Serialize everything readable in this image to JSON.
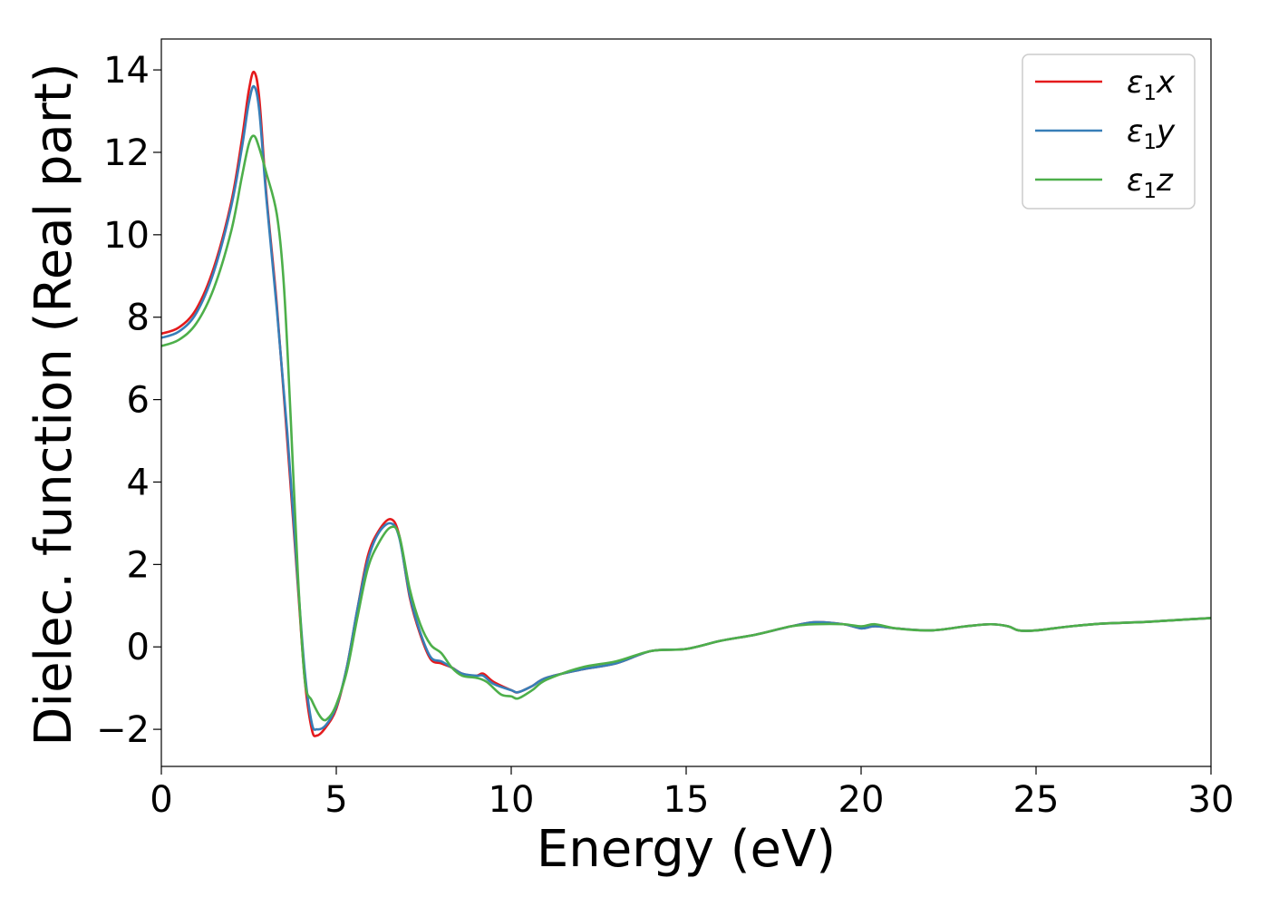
{
  "chart_data": {
    "type": "line",
    "title": "",
    "xlabel": "Energy (eV)",
    "ylabel": "Dielec. function (Real part)",
    "xlim": [
      0,
      30
    ],
    "ylim": [
      -2.9,
      14.75
    ],
    "xticks": [
      0,
      5,
      10,
      15,
      20,
      25,
      30
    ],
    "yticks": [
      -2,
      0,
      2,
      4,
      6,
      8,
      10,
      12,
      14
    ],
    "xtick_labels": [
      "0",
      "5",
      "10",
      "15",
      "20",
      "25",
      "30"
    ],
    "ytick_labels": [
      "−2",
      "0",
      "2",
      "4",
      "6",
      "8",
      "10",
      "12",
      "14"
    ],
    "grid": false,
    "legend_position": "top-right",
    "series": [
      {
        "name": "ε1x",
        "legend_base": "ε",
        "legend_sub": "1",
        "legend_suffix": "x",
        "color": "#e41a1c",
        "points": [
          [
            0,
            7.6
          ],
          [
            0.5,
            7.75
          ],
          [
            1.0,
            8.2
          ],
          [
            1.5,
            9.2
          ],
          [
            2.0,
            10.8
          ],
          [
            2.3,
            12.3
          ],
          [
            2.5,
            13.5
          ],
          [
            2.65,
            13.95
          ],
          [
            2.8,
            13.3
          ],
          [
            3.0,
            11.0
          ],
          [
            3.3,
            8.3
          ],
          [
            3.6,
            5.0
          ],
          [
            3.9,
            1.5
          ],
          [
            4.1,
            -0.8
          ],
          [
            4.3,
            -2.0
          ],
          [
            4.45,
            -2.15
          ],
          [
            4.7,
            -1.95
          ],
          [
            5.0,
            -1.5
          ],
          [
            5.3,
            -0.5
          ],
          [
            5.6,
            0.9
          ],
          [
            5.9,
            2.2
          ],
          [
            6.2,
            2.8
          ],
          [
            6.55,
            3.1
          ],
          [
            6.8,
            2.7
          ],
          [
            7.1,
            1.2
          ],
          [
            7.4,
            0.3
          ],
          [
            7.7,
            -0.3
          ],
          [
            8.0,
            -0.4
          ],
          [
            8.3,
            -0.5
          ],
          [
            8.6,
            -0.65
          ],
          [
            9.0,
            -0.7
          ],
          [
            9.2,
            -0.65
          ],
          [
            9.5,
            -0.85
          ],
          [
            10.0,
            -1.05
          ],
          [
            10.2,
            -1.1
          ],
          [
            10.6,
            -0.95
          ],
          [
            11.0,
            -0.75
          ],
          [
            12.0,
            -0.55
          ],
          [
            13.0,
            -0.4
          ],
          [
            14.0,
            -0.1
          ],
          [
            15.0,
            -0.05
          ],
          [
            16.0,
            0.15
          ],
          [
            17.0,
            0.3
          ],
          [
            18.0,
            0.5
          ],
          [
            18.7,
            0.6
          ],
          [
            19.5,
            0.55
          ],
          [
            20.0,
            0.45
          ],
          [
            20.4,
            0.5
          ],
          [
            21.0,
            0.45
          ],
          [
            22.0,
            0.4
          ],
          [
            23.0,
            0.5
          ],
          [
            23.7,
            0.55
          ],
          [
            24.2,
            0.5
          ],
          [
            24.5,
            0.4
          ],
          [
            25.0,
            0.4
          ],
          [
            26.0,
            0.5
          ],
          [
            27.0,
            0.57
          ],
          [
            28.0,
            0.6
          ],
          [
            29.0,
            0.65
          ],
          [
            30.0,
            0.7
          ]
        ]
      },
      {
        "name": "ε1y",
        "legend_base": "ε",
        "legend_sub": "1",
        "legend_suffix": "y",
        "color": "#377eb8",
        "points": [
          [
            0,
            7.5
          ],
          [
            0.5,
            7.65
          ],
          [
            1.0,
            8.1
          ],
          [
            1.5,
            9.1
          ],
          [
            2.0,
            10.7
          ],
          [
            2.3,
            12.1
          ],
          [
            2.5,
            13.2
          ],
          [
            2.65,
            13.6
          ],
          [
            2.8,
            13.0
          ],
          [
            3.0,
            10.9
          ],
          [
            3.3,
            8.2
          ],
          [
            3.6,
            5.2
          ],
          [
            3.9,
            1.6
          ],
          [
            4.1,
            -0.6
          ],
          [
            4.3,
            -1.85
          ],
          [
            4.45,
            -2.0
          ],
          [
            4.7,
            -1.9
          ],
          [
            5.0,
            -1.45
          ],
          [
            5.3,
            -0.5
          ],
          [
            5.6,
            0.9
          ],
          [
            5.9,
            2.1
          ],
          [
            6.2,
            2.75
          ],
          [
            6.55,
            3.0
          ],
          [
            6.8,
            2.65
          ],
          [
            7.1,
            1.25
          ],
          [
            7.4,
            0.35
          ],
          [
            7.7,
            -0.25
          ],
          [
            8.0,
            -0.35
          ],
          [
            8.3,
            -0.5
          ],
          [
            8.6,
            -0.65
          ],
          [
            9.0,
            -0.7
          ],
          [
            9.2,
            -0.7
          ],
          [
            9.5,
            -0.9
          ],
          [
            10.0,
            -1.05
          ],
          [
            10.2,
            -1.1
          ],
          [
            10.6,
            -0.95
          ],
          [
            11.0,
            -0.75
          ],
          [
            12.0,
            -0.55
          ],
          [
            13.0,
            -0.4
          ],
          [
            14.0,
            -0.1
          ],
          [
            15.0,
            -0.05
          ],
          [
            16.0,
            0.15
          ],
          [
            17.0,
            0.3
          ],
          [
            18.0,
            0.5
          ],
          [
            18.7,
            0.6
          ],
          [
            19.5,
            0.55
          ],
          [
            20.0,
            0.45
          ],
          [
            20.4,
            0.5
          ],
          [
            21.0,
            0.45
          ],
          [
            22.0,
            0.4
          ],
          [
            23.0,
            0.5
          ],
          [
            23.7,
            0.55
          ],
          [
            24.2,
            0.5
          ],
          [
            24.5,
            0.4
          ],
          [
            25.0,
            0.4
          ],
          [
            26.0,
            0.5
          ],
          [
            27.0,
            0.57
          ],
          [
            28.0,
            0.6
          ],
          [
            29.0,
            0.65
          ],
          [
            30.0,
            0.7
          ]
        ]
      },
      {
        "name": "ε1z",
        "legend_base": "ε",
        "legend_sub": "1",
        "legend_suffix": "z",
        "color": "#4daf4a",
        "points": [
          [
            0,
            7.3
          ],
          [
            0.5,
            7.45
          ],
          [
            1.0,
            7.85
          ],
          [
            1.5,
            8.7
          ],
          [
            2.0,
            10.1
          ],
          [
            2.3,
            11.4
          ],
          [
            2.5,
            12.2
          ],
          [
            2.65,
            12.4
          ],
          [
            2.8,
            12.1
          ],
          [
            3.0,
            11.5
          ],
          [
            3.3,
            10.5
          ],
          [
            3.5,
            8.8
          ],
          [
            3.7,
            5.5
          ],
          [
            3.9,
            1.8
          ],
          [
            4.1,
            -0.8
          ],
          [
            4.3,
            -1.3
          ],
          [
            4.6,
            -1.75
          ],
          [
            4.8,
            -1.7
          ],
          [
            5.0,
            -1.4
          ],
          [
            5.3,
            -0.6
          ],
          [
            5.6,
            0.7
          ],
          [
            5.9,
            1.9
          ],
          [
            6.2,
            2.5
          ],
          [
            6.55,
            2.9
          ],
          [
            6.8,
            2.7
          ],
          [
            7.1,
            1.4
          ],
          [
            7.4,
            0.55
          ],
          [
            7.7,
            0.05
          ],
          [
            8.0,
            -0.15
          ],
          [
            8.3,
            -0.5
          ],
          [
            8.6,
            -0.7
          ],
          [
            9.0,
            -0.75
          ],
          [
            9.3,
            -0.85
          ],
          [
            9.7,
            -1.15
          ],
          [
            10.0,
            -1.2
          ],
          [
            10.2,
            -1.25
          ],
          [
            10.6,
            -1.05
          ],
          [
            11.0,
            -0.8
          ],
          [
            12.0,
            -0.5
          ],
          [
            13.0,
            -0.35
          ],
          [
            14.0,
            -0.1
          ],
          [
            15.0,
            -0.05
          ],
          [
            16.0,
            0.15
          ],
          [
            17.0,
            0.3
          ],
          [
            18.0,
            0.5
          ],
          [
            18.7,
            0.55
          ],
          [
            19.5,
            0.55
          ],
          [
            20.0,
            0.5
          ],
          [
            20.4,
            0.55
          ],
          [
            21.0,
            0.45
          ],
          [
            22.0,
            0.4
          ],
          [
            23.0,
            0.5
          ],
          [
            23.7,
            0.55
          ],
          [
            24.2,
            0.5
          ],
          [
            24.5,
            0.4
          ],
          [
            25.0,
            0.4
          ],
          [
            26.0,
            0.5
          ],
          [
            27.0,
            0.57
          ],
          [
            28.0,
            0.6
          ],
          [
            29.0,
            0.65
          ],
          [
            30.0,
            0.7
          ]
        ]
      }
    ]
  }
}
